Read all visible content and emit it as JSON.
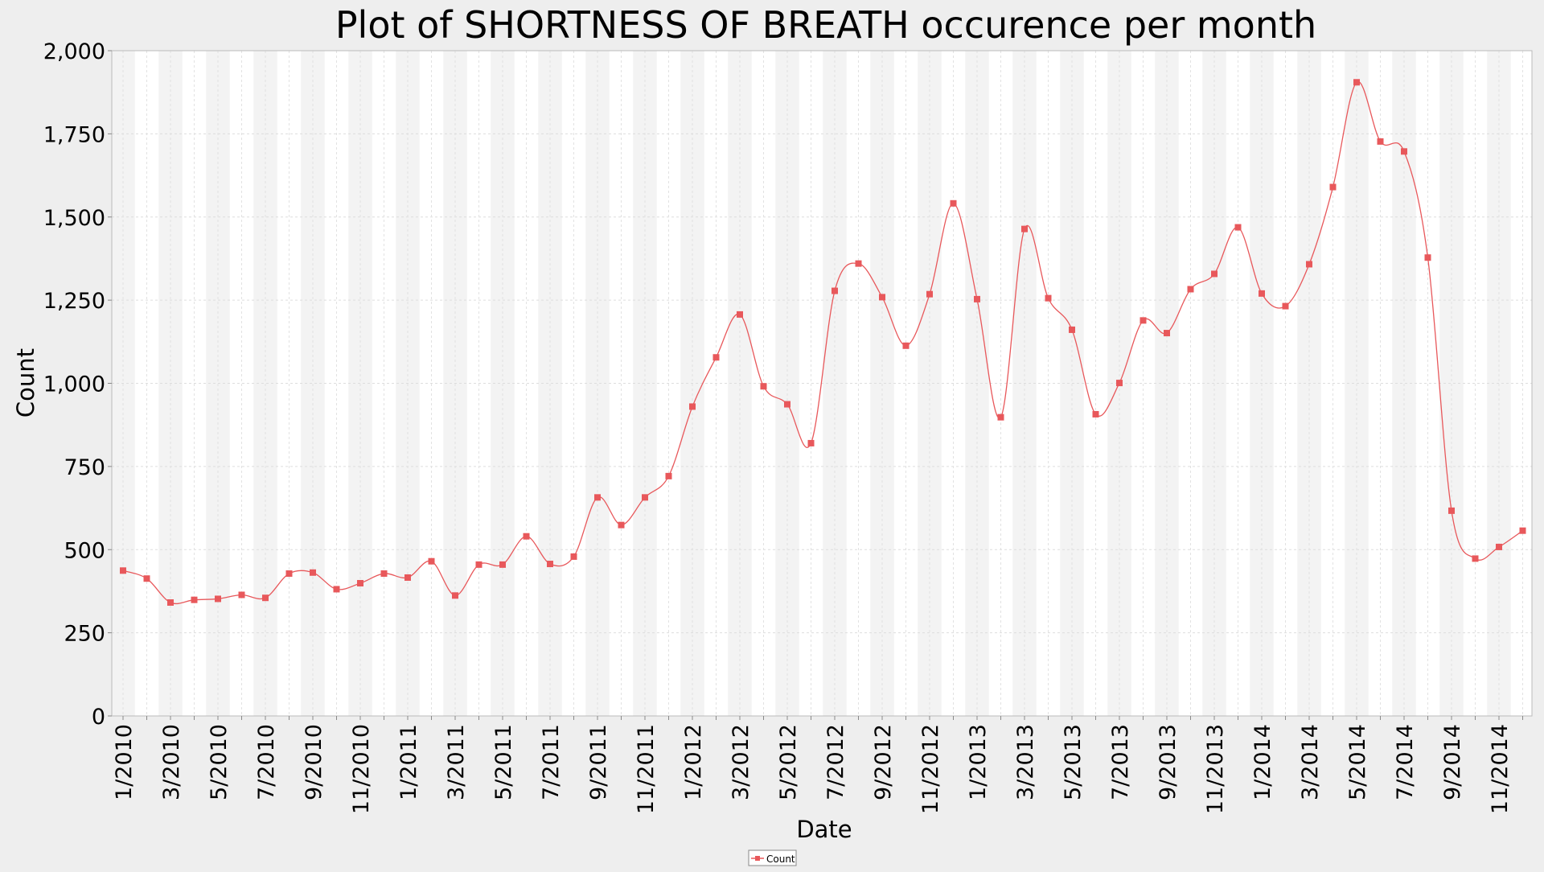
{
  "chart_data": {
    "type": "line",
    "title": "Plot of SHORTNESS OF BREATH occurence per month",
    "xlabel": "Date",
    "ylabel": "Count",
    "ylim": [
      0,
      2000
    ],
    "yticks": [
      0,
      250,
      500,
      750,
      1000,
      1250,
      1500,
      1750,
      2000
    ],
    "ytick_labels": [
      "0",
      "250",
      "500",
      "750",
      "1,000",
      "1,250",
      "1,500",
      "1,750",
      "2,000"
    ],
    "xticks": [
      "1/2010",
      "3/2010",
      "5/2010",
      "7/2010",
      "9/2010",
      "11/2010",
      "1/2011",
      "3/2011",
      "5/2011",
      "7/2011",
      "9/2011",
      "11/2011",
      "1/2012",
      "3/2012",
      "5/2012",
      "7/2012",
      "9/2012",
      "11/2012",
      "1/2013",
      "3/2013",
      "5/2013",
      "7/2013",
      "9/2013",
      "11/2013",
      "1/2014",
      "3/2014",
      "5/2014",
      "7/2014",
      "9/2014",
      "11/2014"
    ],
    "x": [
      "1/2010",
      "2/2010",
      "3/2010",
      "4/2010",
      "5/2010",
      "6/2010",
      "7/2010",
      "8/2010",
      "9/2010",
      "10/2010",
      "11/2010",
      "12/2010",
      "1/2011",
      "2/2011",
      "3/2011",
      "4/2011",
      "5/2011",
      "6/2011",
      "7/2011",
      "8/2011",
      "9/2011",
      "10/2011",
      "11/2011",
      "12/2011",
      "1/2012",
      "2/2012",
      "3/2012",
      "4/2012",
      "5/2012",
      "6/2012",
      "7/2012",
      "8/2012",
      "9/2012",
      "10/2012",
      "11/2012",
      "12/2012",
      "1/2013",
      "2/2013",
      "3/2013",
      "4/2013",
      "5/2013",
      "6/2013",
      "7/2013",
      "8/2013",
      "9/2013",
      "10/2013",
      "11/2013",
      "12/2013",
      "1/2014",
      "2/2014",
      "3/2014",
      "4/2014",
      "5/2014",
      "6/2014",
      "7/2014",
      "8/2014",
      "9/2014",
      "10/2014",
      "11/2014",
      "12/2014"
    ],
    "series": [
      {
        "name": "Count",
        "color": "#e8585b",
        "values": [
          437,
          413,
          341,
          349,
          352,
          364,
          355,
          428,
          431,
          381,
          399,
          428,
          416,
          465,
          362,
          455,
          455,
          540,
          457,
          479,
          657,
          574,
          657,
          721,
          930,
          1078,
          1207,
          991,
          937,
          820,
          1278,
          1360,
          1259,
          1113,
          1268,
          1541,
          1253,
          898,
          1464,
          1256,
          1161,
          907,
          1001,
          1189,
          1151,
          1283,
          1329,
          1469,
          1270,
          1232,
          1358,
          1590,
          1905,
          1727,
          1697,
          1378,
          617,
          473,
          508,
          557
        ]
      }
    ],
    "legend_position": "bottom-center",
    "grid": true,
    "alternating_month_bands": true
  }
}
